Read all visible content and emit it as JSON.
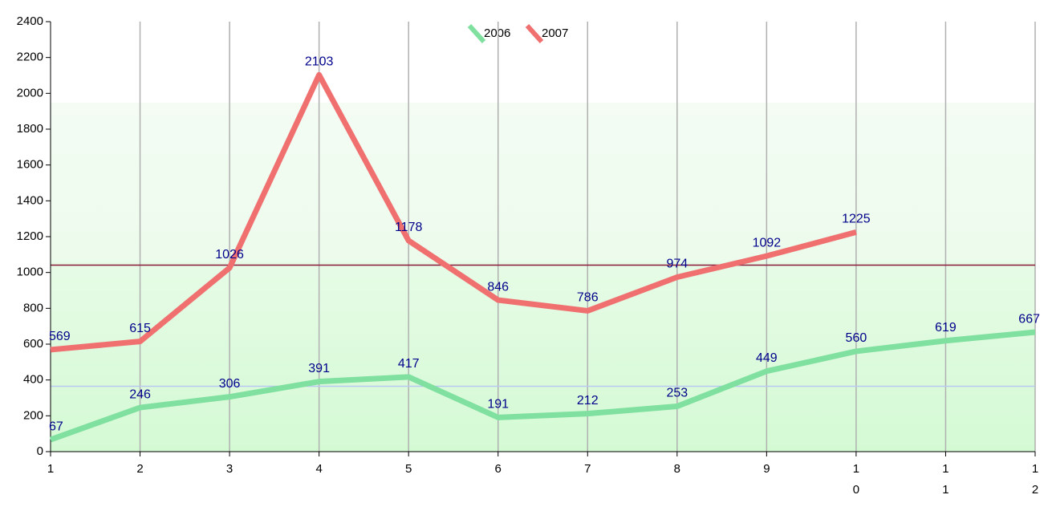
{
  "chart_data": {
    "type": "line",
    "categories": [
      "1",
      "2",
      "3",
      "4",
      "5",
      "6",
      "7",
      "8",
      "9",
      "10",
      "11",
      "12"
    ],
    "series": [
      {
        "name": "2006",
        "color": "#80e0a0",
        "values": [
          67,
          246,
          306,
          391,
          417,
          191,
          212,
          253,
          449,
          560,
          619,
          667
        ]
      },
      {
        "name": "2007",
        "color": "#f07070",
        "values": [
          569,
          615,
          1026,
          2103,
          1178,
          846,
          786,
          974,
          1092,
          1225,
          null,
          null
        ]
      }
    ],
    "reference_lines": [
      {
        "value": 1041,
        "color": "#8b1a3a"
      },
      {
        "value": 365,
        "color": "#b8c8f0"
      }
    ],
    "ylim": [
      0,
      2400
    ],
    "yticks": [
      0,
      200,
      400,
      600,
      800,
      1000,
      1200,
      1400,
      1600,
      1800,
      2000,
      2200,
      2400
    ],
    "grid": true,
    "legend": "top"
  }
}
